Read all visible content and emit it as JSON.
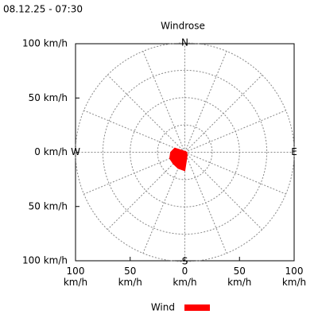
{
  "timestamp": "08.12.25 - 07:30",
  "chart_data": {
    "type": "windrose",
    "title": "Windrose",
    "categories": [
      "N",
      null,
      null,
      null,
      "E",
      null,
      null,
      null,
      "S",
      null,
      null,
      null,
      "W",
      null,
      null,
      null
    ],
    "series": [
      {
        "name": "Wind",
        "color": "#ff0000",
        "values": [
          1,
          1,
          1,
          1,
          2,
          2,
          3,
          5,
          17,
          16,
          15,
          15,
          13,
          10,
          2,
          1
        ]
      }
    ],
    "xlim": [
      -100,
      100
    ],
    "ylim": [
      -100,
      100
    ],
    "xticks": [
      {
        "value": -100,
        "label": "100 km/h"
      },
      {
        "value": -50,
        "label": "50 km/h"
      },
      {
        "value": 0,
        "label": "0 km/h"
      },
      {
        "value": 50,
        "label": "50 km/h"
      },
      {
        "value": 100,
        "label": "100 km/h"
      }
    ],
    "yticks": [
      {
        "value": -100,
        "label": "100 km/h"
      },
      {
        "value": -50,
        "label": "50 km/h"
      },
      {
        "value": 0,
        "label": "0 km/h"
      },
      {
        "value": 50,
        "label": "50 km/h"
      },
      {
        "value": 100,
        "label": "100 km/h"
      }
    ],
    "rticks": [
      25,
      50,
      75,
      100
    ],
    "grid": true,
    "legend": "bottom"
  }
}
